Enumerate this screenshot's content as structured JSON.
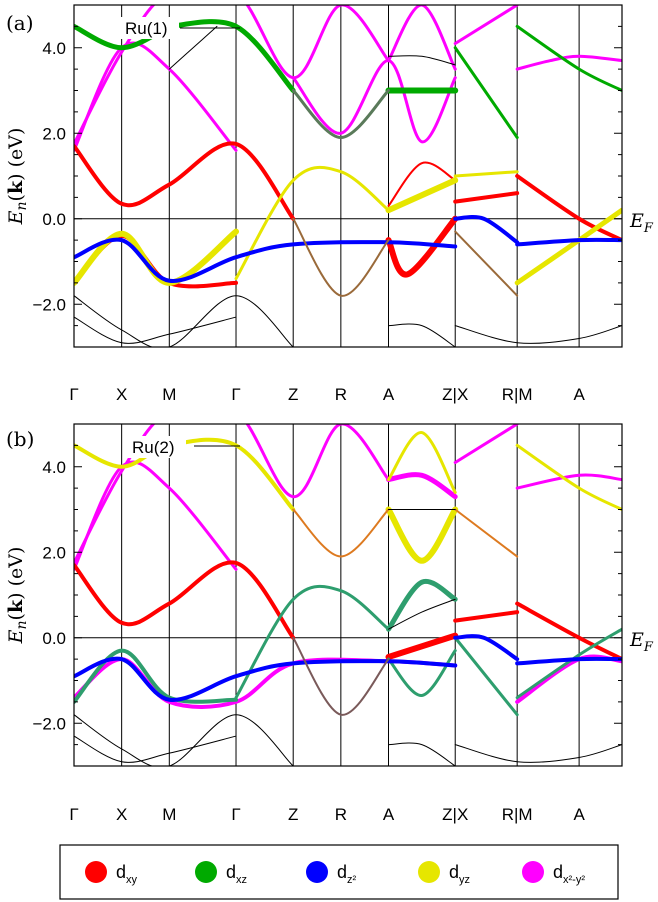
{
  "chart_data": [
    {
      "type": "line",
      "panel": "(a)",
      "annotation": "Ru(1)",
      "ylabel": "E_n(k) (eV)",
      "ylim": [
        -3.0,
        5.0
      ],
      "yticks": [
        "4.0",
        "2.0",
        "0.0",
        "−2.0"
      ],
      "ytick_values": [
        4.0,
        2.0,
        0.0,
        -2.0
      ],
      "fermi_label": "E_F",
      "kpoints": [
        "Γ",
        "X",
        "M",
        "Γ",
        "Z",
        "R",
        "A",
        "Z|X",
        "R|M",
        "A"
      ],
      "kpoint_positions": [
        0,
        1,
        2,
        3.4,
        4.6,
        5.6,
        6.6,
        8.0,
        9.3,
        10.6
      ],
      "x_end": 11.5,
      "series": [
        {
          "color": "#ff00ff",
          "width": 3,
          "x": [
            0,
            1,
            2,
            3.4
          ],
          "y": [
            1.6,
            4.0,
            3.5,
            1.6
          ]
        },
        {
          "color": "#ff00ff",
          "width": 3,
          "x": [
            0,
            1,
            2,
            3.4,
            4.6,
            5.6,
            6.6
          ],
          "y": [
            1.75,
            3.9,
            5.3,
            5.3,
            3.3,
            5.0,
            3.7
          ]
        },
        {
          "color": "#ff00ff",
          "width": 3,
          "x": [
            4.6,
            5.6,
            6.6,
            7.3,
            8.0
          ],
          "y": [
            3.3,
            2.0,
            3.7,
            1.8,
            3.3
          ]
        },
        {
          "color": "#ff00ff",
          "width": 3,
          "x": [
            6.6,
            7.3,
            8.0
          ],
          "y": [
            3.7,
            5.0,
            3.5
          ]
        },
        {
          "color": "#ff00ff",
          "width": 3,
          "x": [
            8.0,
            9.3
          ],
          "y": [
            4.1,
            5.0
          ]
        },
        {
          "color": "#ff00ff",
          "width": 3,
          "x": [
            9.3,
            10.0,
            10.6,
            11.5
          ],
          "y": [
            3.5,
            3.7,
            3.8,
            3.7
          ]
        },
        {
          "color": "#00aa00",
          "width": 5,
          "x": [
            0,
            1,
            2
          ],
          "y": [
            4.5,
            4.0,
            4.5
          ]
        },
        {
          "color": "#00aa00",
          "width": 5,
          "x": [
            2,
            3.4,
            4.6
          ],
          "y": [
            4.5,
            4.5,
            3.0
          ]
        },
        {
          "color": "#00aa00",
          "width": 3,
          "x": [
            8.0,
            9.3
          ],
          "y": [
            4.0,
            1.9
          ]
        },
        {
          "color": "#00aa00",
          "width": 3,
          "x": [
            9.3,
            10.6,
            11.5
          ],
          "y": [
            4.5,
            3.5,
            3.0
          ]
        },
        {
          "color": "#00aa00",
          "width": 6,
          "x": [
            6.6,
            8.0
          ],
          "y": [
            3.0,
            3.0
          ]
        },
        {
          "color": "#5a7a5a",
          "width": 3,
          "x": [
            4.6,
            5.6,
            6.6
          ],
          "y": [
            3.0,
            1.9,
            3.0
          ]
        },
        {
          "color": "#ff0000",
          "width": 4,
          "x": [
            0,
            1,
            2,
            3.4,
            4.6
          ],
          "y": [
            1.7,
            0.35,
            0.8,
            1.75,
            0.0
          ]
        },
        {
          "color": "#ff0000",
          "width": 4,
          "x": [
            0,
            1,
            2,
            3.4
          ],
          "y": [
            -1.5,
            -0.4,
            -1.5,
            -1.5
          ]
        },
        {
          "color": "#ff0000",
          "width": 4,
          "x": [
            9.3,
            10.6,
            11.5
          ],
          "y": [
            1.0,
            0.0,
            -0.5
          ]
        },
        {
          "color": "#ff0000",
          "width": 2,
          "x": [
            6.6,
            7.3,
            8.0
          ],
          "y": [
            0.3,
            1.3,
            0.9
          ]
        },
        {
          "color": "#ff0000",
          "width": 6,
          "x": [
            6.6,
            7.0,
            8.0
          ],
          "y": [
            -0.5,
            -1.3,
            0.0
          ]
        },
        {
          "color": "#ff0000",
          "width": 4,
          "x": [
            8.0,
            9.3
          ],
          "y": [
            0.4,
            0.6
          ]
        },
        {
          "color": "#e6e600",
          "width": 3,
          "x": [
            3.4,
            4.6,
            5.6,
            6.6
          ],
          "y": [
            -1.4,
            0.9,
            1.1,
            0.2
          ]
        },
        {
          "color": "#e6e600",
          "width": 6,
          "x": [
            6.6,
            8.0
          ],
          "y": [
            0.2,
            0.9
          ]
        },
        {
          "color": "#e6e600",
          "width": 6,
          "x": [
            0,
            1,
            2,
            3.4
          ],
          "y": [
            -1.5,
            -0.35,
            -1.5,
            -0.3
          ]
        },
        {
          "color": "#e6e600",
          "width": 3,
          "x": [
            8.0,
            9.3
          ],
          "y": [
            1.0,
            1.1
          ]
        },
        {
          "color": "#e6e600",
          "width": 5,
          "x": [
            9.3,
            10.6,
            11.5
          ],
          "y": [
            -1.5,
            -0.5,
            0.2
          ]
        },
        {
          "color": "#0000ff",
          "width": 4,
          "x": [
            0,
            1,
            2,
            3.4,
            4.6,
            6.6,
            8.0
          ],
          "y": [
            -0.9,
            -0.5,
            -1.45,
            -0.9,
            -0.6,
            -0.55,
            -0.65
          ]
        },
        {
          "color": "#0000ff",
          "width": 4,
          "x": [
            8.0,
            8.6,
            9.3
          ],
          "y": [
            0.0,
            0.0,
            -0.55
          ]
        },
        {
          "color": "#0000ff",
          "width": 4,
          "x": [
            9.3,
            10.6,
            11.5
          ],
          "y": [
            -0.6,
            -0.5,
            -0.5
          ]
        },
        {
          "color": "#9a6a3a",
          "width": 2,
          "x": [
            4.6,
            5.6,
            6.6
          ],
          "y": [
            0.0,
            -1.8,
            -0.5
          ]
        },
        {
          "color": "#9a6a3a",
          "width": 2,
          "x": [
            8.0,
            9.3
          ],
          "y": [
            -0.3,
            -1.8
          ]
        },
        {
          "color": "#000000",
          "width": 1,
          "x": [
            0,
            1,
            2,
            3.4,
            4.6
          ],
          "y": [
            -1.8,
            -2.6,
            -3.0,
            -1.8,
            -3.0
          ]
        },
        {
          "color": "#000000",
          "width": 1,
          "x": [
            0,
            1,
            2,
            3.4
          ],
          "y": [
            -2.3,
            -2.9,
            -2.7,
            -2.3
          ]
        },
        {
          "color": "#000000",
          "width": 1,
          "x": [
            6.6,
            7.3,
            8.0
          ],
          "y": [
            -2.5,
            -2.5,
            -3.0
          ]
        },
        {
          "color": "#000000",
          "width": 1,
          "x": [
            8.0,
            9.3,
            10.6,
            11.5
          ],
          "y": [
            -2.5,
            -2.9,
            -2.8,
            -2.5
          ]
        },
        {
          "color": "#000000",
          "width": 1,
          "x": [
            6.6,
            7.3,
            8.0
          ],
          "y": [
            3.8,
            3.8,
            3.6
          ]
        },
        {
          "color": "#000000",
          "width": 1,
          "x": [
            2,
            2.5,
            3.0
          ],
          "y": [
            3.5,
            4.0,
            4.5
          ]
        }
      ]
    },
    {
      "type": "line",
      "panel": "(b)",
      "annotation": "Ru(2)",
      "ylabel": "E_n(k) (eV)",
      "ylim": [
        -3.0,
        5.0
      ],
      "yticks": [
        "4.0",
        "2.0",
        "0.0",
        "−2.0"
      ],
      "ytick_values": [
        4.0,
        2.0,
        0.0,
        -2.0
      ],
      "fermi_label": "E_F",
      "kpoints": [
        "Γ",
        "X",
        "M",
        "Γ",
        "Z",
        "R",
        "A",
        "Z|X",
        "R|M",
        "A"
      ],
      "kpoint_positions": [
        0,
        1,
        2,
        3.4,
        4.6,
        5.6,
        6.6,
        8.0,
        9.3,
        10.6
      ],
      "x_end": 11.5,
      "series": [
        {
          "color": "#ff00ff",
          "width": 3,
          "x": [
            0,
            1,
            2,
            3.4
          ],
          "y": [
            1.6,
            4.0,
            3.5,
            1.6
          ]
        },
        {
          "color": "#ff00ff",
          "width": 3,
          "x": [
            0,
            1,
            2,
            3.4,
            4.6,
            5.6,
            6.6
          ],
          "y": [
            1.75,
            3.9,
            5.3,
            5.3,
            3.3,
            5.0,
            3.7
          ]
        },
        {
          "color": "#ff00ff",
          "width": 5,
          "x": [
            6.6,
            7.3,
            8.0
          ],
          "y": [
            3.7,
            3.8,
            3.3
          ]
        },
        {
          "color": "#ff00ff",
          "width": 3,
          "x": [
            8.0,
            9.3
          ],
          "y": [
            4.1,
            5.0
          ]
        },
        {
          "color": "#ff00ff",
          "width": 3,
          "x": [
            9.3,
            10.6,
            11.5
          ],
          "y": [
            3.5,
            3.8,
            3.7
          ]
        },
        {
          "color": "#ff00ff",
          "width": 4,
          "x": [
            0,
            1,
            2,
            3.4,
            4.6,
            6.6,
            8.0
          ],
          "y": [
            -1.4,
            -0.5,
            -1.5,
            -1.5,
            -0.6,
            -0.55,
            -0.65
          ]
        },
        {
          "color": "#ff00ff",
          "width": 4,
          "x": [
            9.3,
            10.6,
            11.5
          ],
          "y": [
            -1.5,
            -0.5,
            -0.55
          ]
        },
        {
          "color": "#e6e600",
          "width": 4,
          "x": [
            0,
            1,
            2,
            3.4,
            4.6
          ],
          "y": [
            4.5,
            4.0,
            4.5,
            4.5,
            3.0
          ]
        },
        {
          "color": "#e6e600",
          "width": 6,
          "x": [
            6.6,
            7.3,
            8.0
          ],
          "y": [
            3.0,
            1.8,
            3.0
          ]
        },
        {
          "color": "#e6e600",
          "width": 3,
          "x": [
            6.6,
            7.3,
            8.0
          ],
          "y": [
            3.7,
            4.8,
            3.4
          ]
        },
        {
          "color": "#e6e600",
          "width": 3,
          "x": [
            9.3,
            10.6,
            11.5
          ],
          "y": [
            4.5,
            3.5,
            3.0
          ]
        },
        {
          "color": "#dd7a20",
          "width": 2,
          "x": [
            4.6,
            5.6,
            6.6
          ],
          "y": [
            3.0,
            1.9,
            3.0
          ]
        },
        {
          "color": "#dd7a20",
          "width": 2,
          "x": [
            8.0,
            9.3
          ],
          "y": [
            3.0,
            1.9
          ]
        },
        {
          "color": "#ff0000",
          "width": 4,
          "x": [
            0,
            1,
            2,
            3.4,
            4.6
          ],
          "y": [
            1.7,
            0.35,
            0.8,
            1.75,
            0.0
          ]
        },
        {
          "color": "#ff0000",
          "width": 4,
          "x": [
            9.3,
            10.6,
            11.5
          ],
          "y": [
            0.8,
            0.0,
            -0.5
          ]
        },
        {
          "color": "#ff0000",
          "width": 6,
          "x": [
            6.6,
            8.0
          ],
          "y": [
            -0.45,
            0.05
          ]
        },
        {
          "color": "#ff0000",
          "width": 4,
          "x": [
            8.0,
            9.3
          ],
          "y": [
            0.4,
            0.6
          ]
        },
        {
          "color": "#2e9e6e",
          "width": 3,
          "x": [
            3.4,
            4.6,
            5.6,
            6.6
          ],
          "y": [
            -1.4,
            0.9,
            1.1,
            0.2
          ]
        },
        {
          "color": "#2e9e6e",
          "width": 5,
          "x": [
            6.6,
            7.3,
            8.0
          ],
          "y": [
            0.2,
            1.3,
            0.9
          ]
        },
        {
          "color": "#2e9e6e",
          "width": 3,
          "x": [
            6.6,
            7.3,
            8.0
          ],
          "y": [
            -0.5,
            -1.35,
            -0.3
          ]
        },
        {
          "color": "#2e9e6e",
          "width": 4,
          "x": [
            0,
            1,
            2,
            3.4
          ],
          "y": [
            -1.5,
            -0.3,
            -1.4,
            -1.45
          ]
        },
        {
          "color": "#2e9e6e",
          "width": 3,
          "x": [
            8.0,
            9.3
          ],
          "y": [
            0.0,
            -1.8
          ]
        },
        {
          "color": "#2e9e6e",
          "width": 3,
          "x": [
            9.3,
            10.6,
            11.5
          ],
          "y": [
            -1.4,
            -0.4,
            0.2
          ]
        },
        {
          "color": "#0000ff",
          "width": 4,
          "x": [
            0,
            1,
            2,
            3.4,
            4.6,
            6.6,
            8.0
          ],
          "y": [
            -0.9,
            -0.5,
            -1.45,
            -0.9,
            -0.6,
            -0.55,
            -0.65
          ]
        },
        {
          "color": "#0000ff",
          "width": 4,
          "x": [
            8.0,
            8.6,
            9.3
          ],
          "y": [
            0.0,
            0.0,
            -0.5
          ]
        },
        {
          "color": "#0000ff",
          "width": 4,
          "x": [
            9.3,
            10.6,
            11.5
          ],
          "y": [
            -0.6,
            -0.5,
            -0.5
          ]
        },
        {
          "color": "#7a5a5a",
          "width": 2,
          "x": [
            4.6,
            5.6,
            6.6
          ],
          "y": [
            0.0,
            -1.8,
            -0.5
          ]
        },
        {
          "color": "#000000",
          "width": 1,
          "x": [
            0,
            1,
            2,
            3.4,
            4.6
          ],
          "y": [
            -1.8,
            -2.6,
            -3.0,
            -1.8,
            -3.0
          ]
        },
        {
          "color": "#000000",
          "width": 1,
          "x": [
            0,
            1,
            2,
            3.4
          ],
          "y": [
            -2.3,
            -2.9,
            -2.7,
            -2.3
          ]
        },
        {
          "color": "#000000",
          "width": 1,
          "x": [
            6.6,
            7.3,
            8.0
          ],
          "y": [
            -2.5,
            -2.5,
            -3.0
          ]
        },
        {
          "color": "#000000",
          "width": 1,
          "x": [
            8.0,
            9.3,
            10.6,
            11.5
          ],
          "y": [
            -2.5,
            -2.9,
            -2.8,
            -2.5
          ]
        },
        {
          "color": "#000000",
          "width": 1,
          "x": [
            6.6,
            8.0
          ],
          "y": [
            3.0,
            3.0
          ]
        },
        {
          "color": "#000000",
          "width": 1,
          "x": [
            6.6,
            7.3,
            8.0
          ],
          "y": [
            0.2,
            0.6,
            0.9
          ]
        }
      ]
    }
  ],
  "legend": {
    "items": [
      {
        "base": "d",
        "sub": "xy",
        "color": "#ff0000"
      },
      {
        "base": "d",
        "sub": "xz",
        "color": "#00aa00"
      },
      {
        "base": "d",
        "sub": "z²",
        "color": "#0000ff"
      },
      {
        "base": "d",
        "sub": "yz",
        "color": "#e6e600"
      },
      {
        "base": "d",
        "sub": "x²-y²",
        "color": "#ff00ff"
      }
    ]
  }
}
